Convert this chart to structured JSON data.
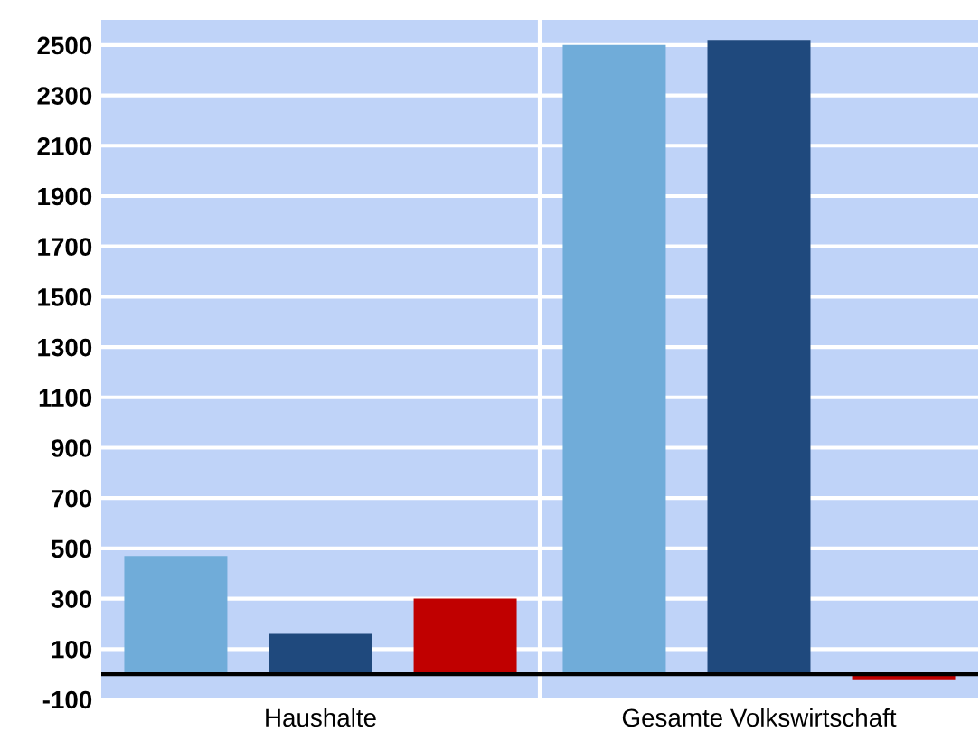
{
  "chart_data": {
    "type": "bar",
    "categories": [
      "Haushalte",
      "Gesamte Volkswirtschaft"
    ],
    "series": [
      {
        "color": "#70acd9",
        "values": [
          470,
          2500
        ]
      },
      {
        "color": "#1f497d",
        "values": [
          160,
          2520
        ]
      },
      {
        "color": "#c00000",
        "values": [
          300,
          -20
        ]
      }
    ],
    "ylim": [
      -100,
      2600
    ],
    "yticks": [
      -100,
      100,
      300,
      500,
      700,
      900,
      1100,
      1300,
      1500,
      1700,
      1900,
      2100,
      2300,
      2500
    ],
    "grid": true,
    "ref_lines": [
      {
        "axis": "y",
        "value": 0,
        "color": "#000000"
      }
    ]
  }
}
